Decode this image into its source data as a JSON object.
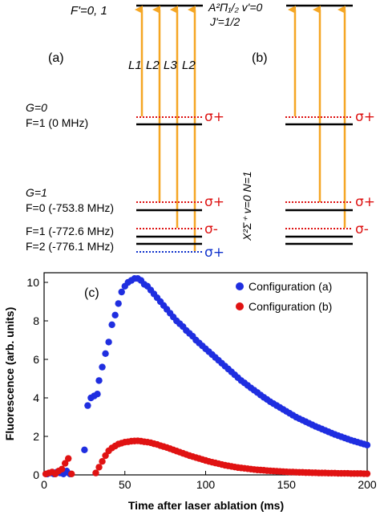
{
  "colors": {
    "laser": "#f5a623",
    "sigma_plus": "#dd1111",
    "sigma_minus": "#dd1111",
    "sigma_plus_blue": "#1133cc",
    "config_a": "#1f2ee0",
    "config_b": "#e01212"
  },
  "diagram": {
    "excited_state_label": "F'=0, 1",
    "excited_term": "A²Π₁/₂ v'=0",
    "excited_j": "J'=1/2",
    "panel_a": "(a)",
    "panel_b": "(b)",
    "laser_labels": [
      "L1",
      "L2",
      "L3",
      "L2"
    ],
    "ground_term": "X²Σ⁺ v=0 N=1",
    "levels": [
      {
        "g": "G=0",
        "f": "F=1 (0 MHz)",
        "pol": "σ+"
      },
      {
        "g": "G=1",
        "f": "F=0 (-753.8 MHz)",
        "pol": "σ+"
      },
      {
        "g": "",
        "f": "F=1 (-772.6 MHz)",
        "pol": "σ-"
      },
      {
        "g": "",
        "f": "F=2 (-776.1 MHz)",
        "pol": "σ+"
      }
    ],
    "panel_b_pols": [
      "σ+",
      "σ+",
      "σ-"
    ]
  },
  "chart_data": {
    "type": "scatter",
    "panel_label": "(c)",
    "xlabel": "Time after laser ablation (ms)",
    "ylabel": "Fluorescence (arb. units)",
    "xlim": [
      0,
      200
    ],
    "ylim": [
      0,
      10.5
    ],
    "xticks": [
      0,
      50,
      100,
      150,
      200
    ],
    "yticks": [
      0,
      2,
      4,
      6,
      8,
      10
    ],
    "legend_position": "top-right",
    "series": [
      {
        "name": "Configuration (a)",
        "points": [
          [
            2,
            0.05
          ],
          [
            4,
            0.1
          ],
          [
            6,
            0.05
          ],
          [
            8,
            0.15
          ],
          [
            10,
            0.1
          ],
          [
            12,
            0.05
          ],
          [
            14,
            0.2
          ],
          [
            16,
            0.05
          ],
          [
            25,
            1.3
          ],
          [
            27,
            3.6
          ],
          [
            29,
            4.0
          ],
          [
            31,
            4.1
          ],
          [
            33,
            4.2
          ],
          [
            34,
            4.9
          ],
          [
            36,
            5.6
          ],
          [
            38,
            6.3
          ],
          [
            40,
            6.9
          ],
          [
            42,
            7.8
          ],
          [
            44,
            8.3
          ],
          [
            46,
            8.9
          ],
          [
            48,
            9.5
          ],
          [
            50,
            9.8
          ],
          [
            52,
            10.0
          ],
          [
            54,
            10.1
          ],
          [
            56,
            10.2
          ],
          [
            58,
            10.2
          ],
          [
            60,
            10.1
          ],
          [
            62,
            9.9
          ],
          [
            64,
            9.8
          ],
          [
            66,
            9.6
          ],
          [
            68,
            9.4
          ],
          [
            70,
            9.2
          ],
          [
            72,
            9.0
          ],
          [
            74,
            8.8
          ],
          [
            76,
            8.6
          ],
          [
            78,
            8.4
          ],
          [
            80,
            8.2
          ],
          [
            82,
            8.0
          ],
          [
            84,
            7.85
          ],
          [
            86,
            7.7
          ],
          [
            88,
            7.5
          ],
          [
            90,
            7.35
          ],
          [
            92,
            7.2
          ],
          [
            94,
            7.0
          ],
          [
            96,
            6.85
          ],
          [
            98,
            6.7
          ],
          [
            100,
            6.55
          ],
          [
            102,
            6.4
          ],
          [
            104,
            6.25
          ],
          [
            106,
            6.1
          ],
          [
            108,
            5.95
          ],
          [
            110,
            5.8
          ],
          [
            112,
            5.65
          ],
          [
            114,
            5.5
          ],
          [
            116,
            5.35
          ],
          [
            118,
            5.2
          ],
          [
            120,
            5.05
          ],
          [
            122,
            4.9
          ],
          [
            124,
            4.78
          ],
          [
            126,
            4.65
          ],
          [
            128,
            4.52
          ],
          [
            130,
            4.4
          ],
          [
            132,
            4.28
          ],
          [
            134,
            4.15
          ],
          [
            136,
            4.03
          ],
          [
            138,
            3.92
          ],
          [
            140,
            3.8
          ],
          [
            142,
            3.7
          ],
          [
            144,
            3.6
          ],
          [
            146,
            3.5
          ],
          [
            148,
            3.4
          ],
          [
            150,
            3.3
          ],
          [
            152,
            3.2
          ],
          [
            154,
            3.1
          ],
          [
            156,
            3.0
          ],
          [
            158,
            2.92
          ],
          [
            160,
            2.84
          ],
          [
            162,
            2.76
          ],
          [
            164,
            2.68
          ],
          [
            166,
            2.6
          ],
          [
            168,
            2.52
          ],
          [
            170,
            2.45
          ],
          [
            172,
            2.38
          ],
          [
            174,
            2.31
          ],
          [
            176,
            2.24
          ],
          [
            178,
            2.17
          ],
          [
            180,
            2.1
          ],
          [
            182,
            2.04
          ],
          [
            184,
            1.98
          ],
          [
            186,
            1.92
          ],
          [
            188,
            1.86
          ],
          [
            190,
            1.8
          ],
          [
            192,
            1.75
          ],
          [
            194,
            1.7
          ],
          [
            196,
            1.65
          ],
          [
            198,
            1.6
          ],
          [
            200,
            1.55
          ]
        ]
      },
      {
        "name": "Configuration (b)",
        "points": [
          [
            1,
            0.05
          ],
          [
            3,
            0.1
          ],
          [
            5,
            0.15
          ],
          [
            7,
            0.05
          ],
          [
            9,
            0.2
          ],
          [
            11,
            0.3
          ],
          [
            13,
            0.6
          ],
          [
            15,
            0.85
          ],
          [
            17,
            0.05
          ],
          [
            32,
            0.1
          ],
          [
            34,
            0.4
          ],
          [
            36,
            0.7
          ],
          [
            38,
            1.0
          ],
          [
            40,
            1.25
          ],
          [
            42,
            1.4
          ],
          [
            44,
            1.5
          ],
          [
            46,
            1.6
          ],
          [
            48,
            1.65
          ],
          [
            50,
            1.7
          ],
          [
            52,
            1.72
          ],
          [
            54,
            1.75
          ],
          [
            56,
            1.76
          ],
          [
            58,
            1.77
          ],
          [
            60,
            1.75
          ],
          [
            62,
            1.72
          ],
          [
            64,
            1.7
          ],
          [
            66,
            1.67
          ],
          [
            68,
            1.62
          ],
          [
            70,
            1.58
          ],
          [
            72,
            1.52
          ],
          [
            74,
            1.47
          ],
          [
            76,
            1.42
          ],
          [
            78,
            1.36
          ],
          [
            80,
            1.3
          ],
          [
            82,
            1.24
          ],
          [
            84,
            1.18
          ],
          [
            86,
            1.12
          ],
          [
            88,
            1.06
          ],
          [
            90,
            1.0
          ],
          [
            92,
            0.95
          ],
          [
            94,
            0.9
          ],
          [
            96,
            0.85
          ],
          [
            98,
            0.8
          ],
          [
            100,
            0.75
          ],
          [
            102,
            0.7
          ],
          [
            104,
            0.66
          ],
          [
            106,
            0.62
          ],
          [
            108,
            0.58
          ],
          [
            110,
            0.54
          ],
          [
            112,
            0.5
          ],
          [
            114,
            0.47
          ],
          [
            116,
            0.44
          ],
          [
            118,
            0.41
          ],
          [
            120,
            0.38
          ],
          [
            122,
            0.36
          ],
          [
            124,
            0.34
          ],
          [
            126,
            0.32
          ],
          [
            128,
            0.3
          ],
          [
            130,
            0.28
          ],
          [
            132,
            0.26
          ],
          [
            134,
            0.25
          ],
          [
            136,
            0.24
          ],
          [
            138,
            0.22
          ],
          [
            140,
            0.21
          ],
          [
            142,
            0.2
          ],
          [
            144,
            0.19
          ],
          [
            146,
            0.18
          ],
          [
            148,
            0.17
          ],
          [
            150,
            0.16
          ],
          [
            152,
            0.15
          ],
          [
            154,
            0.15
          ],
          [
            156,
            0.14
          ],
          [
            158,
            0.13
          ],
          [
            160,
            0.13
          ],
          [
            162,
            0.12
          ],
          [
            164,
            0.12
          ],
          [
            166,
            0.11
          ],
          [
            168,
            0.11
          ],
          [
            170,
            0.1
          ],
          [
            172,
            0.1
          ],
          [
            174,
            0.1
          ],
          [
            176,
            0.09
          ],
          [
            178,
            0.09
          ],
          [
            180,
            0.09
          ],
          [
            182,
            0.08
          ],
          [
            184,
            0.08
          ],
          [
            186,
            0.08
          ],
          [
            188,
            0.08
          ],
          [
            190,
            0.07
          ],
          [
            192,
            0.07
          ],
          [
            194,
            0.07
          ],
          [
            196,
            0.07
          ],
          [
            198,
            0.06
          ],
          [
            200,
            0.06
          ]
        ]
      }
    ]
  }
}
